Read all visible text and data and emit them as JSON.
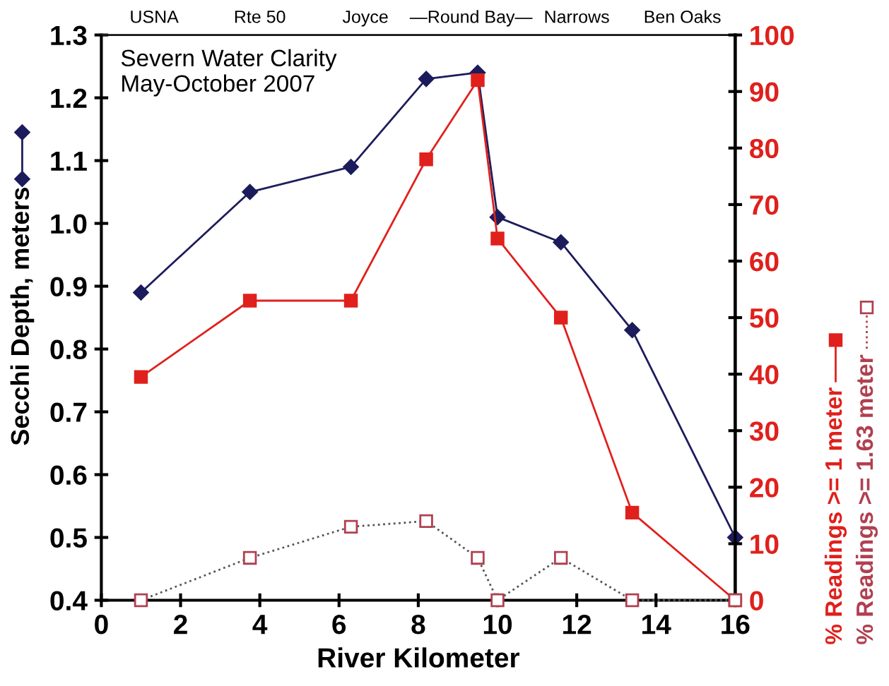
{
  "chart_data": {
    "type": "line",
    "title": "Severn Water Clarity\nMay-October 2007",
    "xlabel": "River Kilometer",
    "x": [
      1.0,
      3.75,
      6.3,
      8.2,
      9.5,
      10.0,
      11.6,
      13.4,
      16.0
    ],
    "series": [
      {
        "name": "Secchi Depth, meters",
        "color": "#1c1c5c",
        "marker": "diamond",
        "line_style": "solid",
        "values": [
          0.89,
          1.05,
          1.09,
          1.23,
          1.24,
          1.01,
          0.97,
          0.83,
          0.5
        ]
      },
      {
        "name": "% Readings >= 1 meter",
        "color": "#e0201c",
        "marker": "square",
        "line_style": "solid",
        "axis": "y2",
        "values": [
          39.5,
          53,
          53,
          78,
          92,
          64,
          50,
          15.5,
          0
        ]
      },
      {
        "name": "% Readings >= 1.63 meter",
        "color": "#b04050",
        "marker": "square",
        "line_style": "dotted",
        "axis": "y2",
        "values": [
          0,
          7.5,
          13,
          14,
          7.5,
          0,
          7.5,
          0,
          0
        ]
      }
    ],
    "xlim": [
      0,
      16
    ],
    "xticks": [
      0,
      2,
      4,
      6,
      8,
      10,
      12,
      14,
      16
    ],
    "ylim": [
      0.4,
      1.3
    ],
    "yticks": [
      {
        "value": 0.4,
        "label": "0.4"
      },
      {
        "value": 0.5,
        "label": "0.5"
      },
      {
        "value": 0.6,
        "label": "0.6"
      },
      {
        "value": 0.7,
        "label": "0.7"
      },
      {
        "value": 0.8,
        "label": "0.8"
      },
      {
        "value": 0.9,
        "label": "0.9"
      },
      {
        "value": 1.0,
        "label": "1.0"
      },
      {
        "value": 1.1,
        "label": "1.1"
      },
      {
        "value": 1.2,
        "label": "1.2"
      },
      {
        "value": 1.3,
        "label": "1.3"
      }
    ],
    "y2lim": [
      0,
      100
    ],
    "y2ticks": [
      0,
      10,
      20,
      30,
      40,
      50,
      60,
      70,
      80,
      90,
      100
    ],
    "annotations": [
      "USNA",
      "Rte 50",
      "Joyce",
      "—Round Bay—",
      "Narrows",
      "Ben Oaks"
    ],
    "grid": false,
    "legend": "right"
  }
}
